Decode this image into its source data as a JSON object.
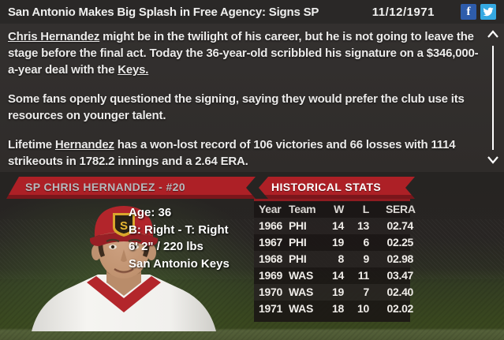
{
  "header": {
    "title": "San Antonio Makes Big Splash in Free Agency: Signs SP",
    "date": "11/12/1971",
    "social": [
      {
        "name": "facebook",
        "glyph": "f",
        "color": "#2e5cab"
      },
      {
        "name": "twitter",
        "color": "#35a9e2"
      }
    ]
  },
  "article": {
    "paragraphs": [
      {
        "segments": [
          {
            "text": "Chris Hernandez",
            "link": true
          },
          {
            "text": " might be in the twilight of his career, but he is not going to leave the stage before the final act. Today the 36-year-old scribbled his signature on a $346,000-a-year deal with the "
          },
          {
            "text": "Keys.",
            "link": true
          }
        ]
      },
      {
        "segments": [
          {
            "text": "Some fans openly questioned the signing, saying they would prefer the club use its resources on younger talent."
          }
        ]
      },
      {
        "segments": [
          {
            "text": "Lifetime "
          },
          {
            "text": "Hernandez",
            "link": true
          },
          {
            "text": " has a won-lost record of 106 victories and 66 losses with 1114 strikeouts in 1782.2 innings and a 2.64 ERA."
          }
        ]
      }
    ]
  },
  "player_card": {
    "banner": "SP CHRIS HERNANDEZ - #20",
    "cap_monogram": "S",
    "details": [
      "Age: 36",
      "B: Right - T: Right",
      "6' 2\" / 220 lbs",
      "San Antonio Keys"
    ]
  },
  "stats": {
    "banner": "HISTORICAL STATS",
    "columns": [
      "Year",
      "Team",
      "W",
      "L",
      "S",
      "ERA"
    ],
    "rows": [
      [
        "1966",
        "PHI",
        "14",
        "13",
        "0",
        "2.74"
      ],
      [
        "1967",
        "PHI",
        "19",
        "6",
        "0",
        "2.25"
      ],
      [
        "1968",
        "PHI",
        "8",
        "9",
        "0",
        "2.98"
      ],
      [
        "1969",
        "WAS",
        "14",
        "11",
        "0",
        "3.47"
      ],
      [
        "1970",
        "WAS",
        "19",
        "7",
        "0",
        "2.40"
      ],
      [
        "1971",
        "WAS",
        "18",
        "10",
        "0",
        "2.02"
      ]
    ]
  },
  "colors": {
    "banner_red": "#ad2026",
    "banner_red_dark": "#7a161b",
    "facebook_blue": "#2e5cab",
    "twitter_blue": "#35a9e2",
    "field_green": "#4d5833"
  }
}
